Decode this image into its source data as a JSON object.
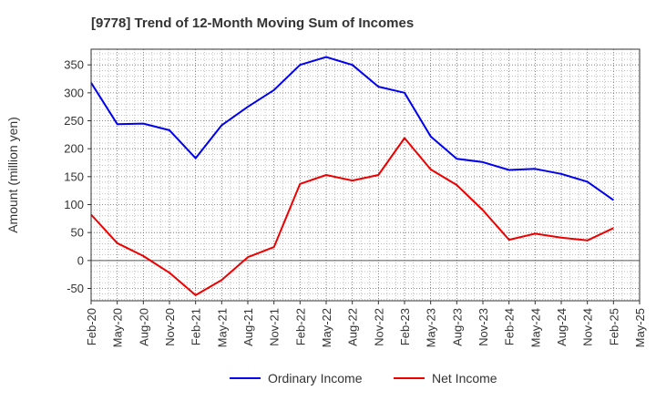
{
  "chart_data": {
    "type": "line",
    "title": "[9778]  Trend of 12-Month Moving Sum of Incomes",
    "xlabel": "",
    "ylabel": "Amount (million yen)",
    "ylim": [
      -72,
      378
    ],
    "yticks": [
      -50,
      0,
      50,
      100,
      150,
      200,
      250,
      300,
      350
    ],
    "grid": true,
    "legend_position": "bottom-center",
    "categories": [
      "Feb-20",
      "May-20",
      "Aug-20",
      "Nov-20",
      "Feb-21",
      "May-21",
      "Aug-21",
      "Nov-21",
      "Feb-22",
      "May-22",
      "Aug-22",
      "Nov-22",
      "Feb-23",
      "May-23",
      "Aug-23",
      "Nov-23",
      "Feb-24",
      "May-24",
      "Aug-24",
      "Nov-24",
      "Feb-25",
      "May-25"
    ],
    "series": [
      {
        "name": "Ordinary Income",
        "color": "#0000ee",
        "values": [
          318,
          244,
          245,
          233,
          183,
          242,
          275,
          305,
          350,
          364,
          350,
          311,
          300,
          222,
          182,
          176,
          162,
          164,
          155,
          141,
          108,
          null
        ]
      },
      {
        "name": "Net Income",
        "color": "#ee0000",
        "values": [
          82,
          31,
          8,
          -22,
          -62,
          -35,
          6,
          24,
          137,
          153,
          143,
          153,
          219,
          163,
          135,
          90,
          37,
          48,
          41,
          36,
          58,
          null
        ]
      }
    ]
  }
}
